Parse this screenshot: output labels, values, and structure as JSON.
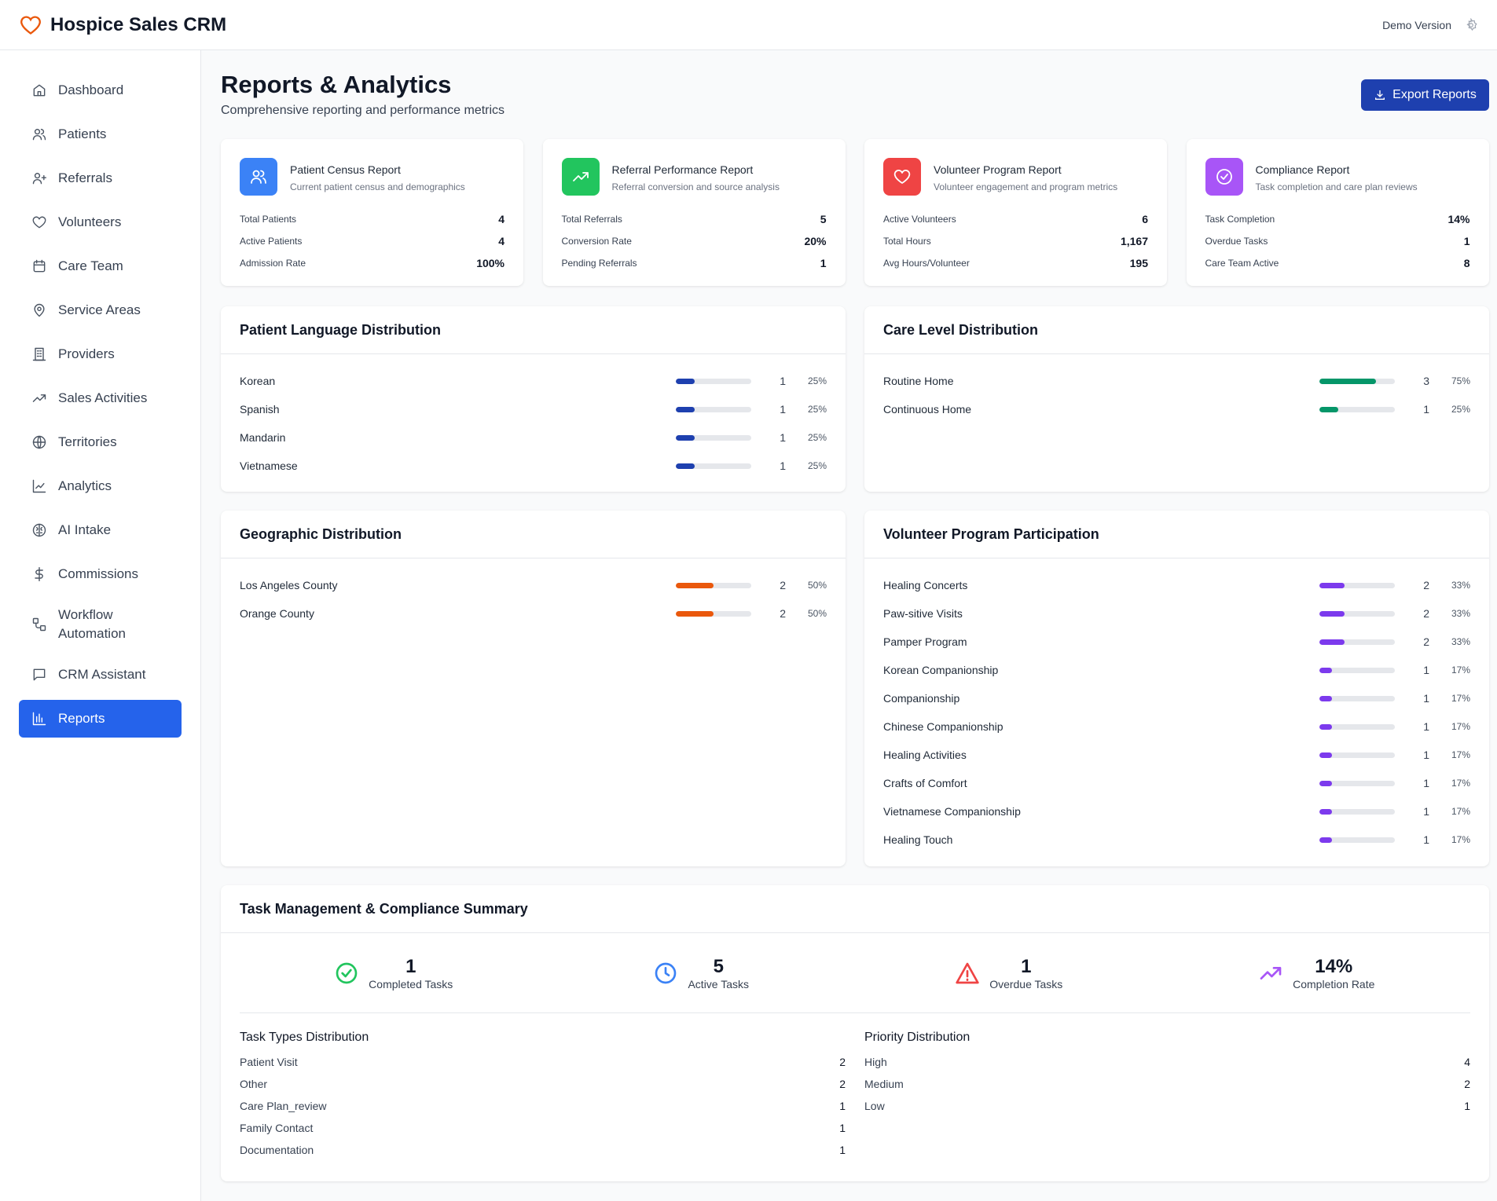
{
  "app": {
    "title": "Hospice Sales CRM",
    "demo": "Demo Version"
  },
  "nav": [
    {
      "label": "Dashboard",
      "icon": "home-icon"
    },
    {
      "label": "Patients",
      "icon": "users-icon"
    },
    {
      "label": "Referrals",
      "icon": "user-plus-icon"
    },
    {
      "label": "Volunteers",
      "icon": "heart-icon"
    },
    {
      "label": "Care Team",
      "icon": "calendar-icon"
    },
    {
      "label": "Service Areas",
      "icon": "map-pin-icon"
    },
    {
      "label": "Providers",
      "icon": "building-icon"
    },
    {
      "label": "Sales Activities",
      "icon": "trending-up-icon"
    },
    {
      "label": "Territories",
      "icon": "globe-icon"
    },
    {
      "label": "Analytics",
      "icon": "line-chart-icon"
    },
    {
      "label": "AI Intake",
      "icon": "brain-icon"
    },
    {
      "label": "Commissions",
      "icon": "dollar-icon"
    },
    {
      "label": "Workflow Automation",
      "icon": "workflow-icon"
    },
    {
      "label": "CRM Assistant",
      "icon": "message-icon"
    },
    {
      "label": "Reports",
      "icon": "bar-chart-icon",
      "active": true
    }
  ],
  "page": {
    "title": "Reports & Analytics",
    "subtitle": "Comprehensive reporting and performance metrics",
    "export": "Export Reports"
  },
  "reports": [
    {
      "title": "Patient Census Report",
      "desc": "Current patient census and demographics",
      "color": "#3b82f6",
      "rows": [
        [
          "Total Patients",
          "4"
        ],
        [
          "Active Patients",
          "4"
        ],
        [
          "Admission Rate",
          "100%"
        ]
      ]
    },
    {
      "title": "Referral Performance Report",
      "desc": "Referral conversion and source analysis",
      "color": "#22c55e",
      "rows": [
        [
          "Total Referrals",
          "5"
        ],
        [
          "Conversion Rate",
          "20%"
        ],
        [
          "Pending Referrals",
          "1"
        ]
      ]
    },
    {
      "title": "Volunteer Program Report",
      "desc": "Volunteer engagement and program metrics",
      "color": "#ef4444",
      "rows": [
        [
          "Active Volunteers",
          "6"
        ],
        [
          "Total Hours",
          "1,167"
        ],
        [
          "Avg Hours/Volunteer",
          "195"
        ]
      ]
    },
    {
      "title": "Compliance Report",
      "desc": "Task completion and care plan reviews",
      "color": "#a855f7",
      "rows": [
        [
          "Task Completion",
          "14%"
        ],
        [
          "Overdue Tasks",
          "1"
        ],
        [
          "Care Team Active",
          "8"
        ]
      ]
    }
  ],
  "distributions": [
    {
      "title": "Patient Language Distribution",
      "color": "#1e40af",
      "rows": [
        [
          "Korean",
          1,
          25
        ],
        [
          "Spanish",
          1,
          25
        ],
        [
          "Mandarin",
          1,
          25
        ],
        [
          "Vietnamese",
          1,
          25
        ]
      ]
    },
    {
      "title": "Care Level Distribution",
      "color": "#059669",
      "rows": [
        [
          "Routine Home",
          3,
          75
        ],
        [
          "Continuous Home",
          1,
          25
        ]
      ]
    },
    {
      "title": "Geographic Distribution",
      "color": "#ea580c",
      "rows": [
        [
          "Los Angeles County",
          2,
          50
        ],
        [
          "Orange County",
          2,
          50
        ]
      ]
    },
    {
      "title": "Volunteer Program Participation",
      "color": "#7c3aed",
      "rows": [
        [
          "Healing Concerts",
          2,
          33
        ],
        [
          "Paw-sitive Visits",
          2,
          33
        ],
        [
          "Pamper Program",
          2,
          33
        ],
        [
          "Korean Companionship",
          1,
          17
        ],
        [
          "Companionship",
          1,
          17
        ],
        [
          "Chinese Companionship",
          1,
          17
        ],
        [
          "Healing Activities",
          1,
          17
        ],
        [
          "Crafts of Comfort",
          1,
          17
        ],
        [
          "Vietnamese Companionship",
          1,
          17
        ],
        [
          "Healing Touch",
          1,
          17
        ]
      ]
    }
  ],
  "tasks": {
    "title": "Task Management & Compliance Summary",
    "stats": [
      {
        "value": "1",
        "label": "Completed Tasks"
      },
      {
        "value": "5",
        "label": "Active Tasks"
      },
      {
        "value": "1",
        "label": "Overdue Tasks"
      },
      {
        "value": "14%",
        "label": "Completion Rate"
      }
    ],
    "types": {
      "title": "Task Types Distribution",
      "rows": [
        [
          "Patient Visit",
          "2"
        ],
        [
          "Other",
          "2"
        ],
        [
          "Care Plan_review",
          "1"
        ],
        [
          "Family Contact",
          "1"
        ],
        [
          "Documentation",
          "1"
        ]
      ]
    },
    "priority": {
      "title": "Priority Distribution",
      "rows": [
        [
          "High",
          "4"
        ],
        [
          "Medium",
          "2"
        ],
        [
          "Low",
          "1"
        ]
      ]
    }
  }
}
